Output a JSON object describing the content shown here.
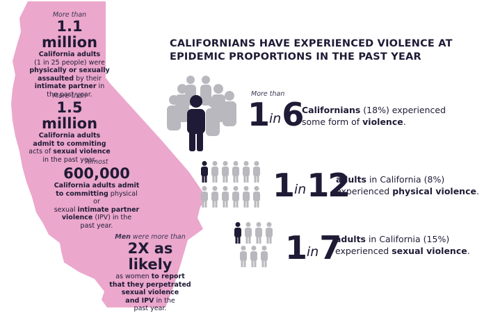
{
  "colors": {
    "map_pink": "#eba7cc",
    "dark_person": "#1f1a35",
    "gray_person": "#b9b8be",
    "text": "#1f1a35"
  },
  "left_panel": {
    "stat1": {
      "intro": "More than",
      "big": "1.1 million",
      "line1": "California adults",
      "line2": "(1 in 25 people) were",
      "line3": "physically or sexually",
      "line4_bold": "assaulted",
      "line4_rest": " by their",
      "line5_bold": "intimate partner",
      "line5_rest": " in",
      "line6": "the past year."
    },
    "stat2": {
      "intro": "More than",
      "big": "1.5 million",
      "line1": "California adults",
      "line2": "admit to commiting",
      "line3_pre": "acts of ",
      "line3_bold": "sexual violence",
      "line4": "in the past year."
    },
    "stat3": {
      "intro": "Almost",
      "big": "600,000",
      "line1": "California adults admit",
      "line2_bold": "to committing",
      "line2_rest": " physical or",
      "line3_pre": "sexual ",
      "line3_bold": "intimate partner",
      "line4_bold": "violence",
      "line4_rest": " (IPV) in the",
      "line5": "past year."
    },
    "stat4": {
      "intro_bold": "Men",
      "intro_rest": " were more than",
      "big": "2X as likely",
      "line1_pre": "as women ",
      "line1_bold": "to report",
      "line2": "that they perpetrated",
      "line3": "sexual violence",
      "line4": "and IPV",
      "line4_rest": " in the",
      "line5": "past year."
    }
  },
  "headline": {
    "line1": "CALIFORNIANS HAVE EXPERIENCED VIOLENCE AT",
    "line2": "EPIDEMIC PROPORTIONS IN THE PAST YEAR"
  },
  "row1": {
    "more_than": "More than",
    "num1": "1",
    "in": "in",
    "num2": "6",
    "label_bold1": "Californians",
    "label_rest1": " (18%) experienced",
    "label_pre2": "some form of ",
    "label_bold2": "violence",
    "label_end2": ".",
    "icon_name": "people-crowd-icon"
  },
  "row2": {
    "num1": "1",
    "in": "in",
    "num2": "12",
    "label_bold1": "adults",
    "label_rest1": " in California (8%)",
    "label_pre2": "experienced ",
    "label_bold2": "physical violence",
    "label_end2": ".",
    "icon_name": "people-grid-12-icon"
  },
  "row3": {
    "num1": "1",
    "in": "in",
    "num2": "7",
    "label_bold1": "adults",
    "label_rest1": " in California (15%)",
    "label_pre2": "experienced ",
    "label_bold2": "sexual violence",
    "label_end2": ".",
    "icon_name": "people-grid-7-icon"
  }
}
